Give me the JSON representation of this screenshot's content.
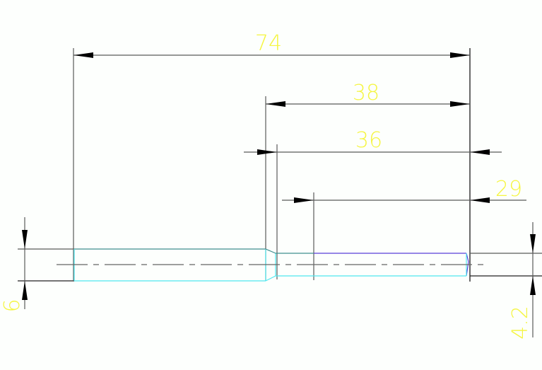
{
  "dimensions": {
    "overall_length": "74",
    "shank_length": "38",
    "neck_length": "36",
    "tip_length": "29",
    "large_diameter": "6",
    "small_diameter": "4.2"
  },
  "colors": {
    "background": "#fdfffd",
    "dimension_text": "#f5f542",
    "outline": "#4fe8f0",
    "highlight_edge": "#5a3fd8",
    "lines": "#5a5a5a"
  }
}
